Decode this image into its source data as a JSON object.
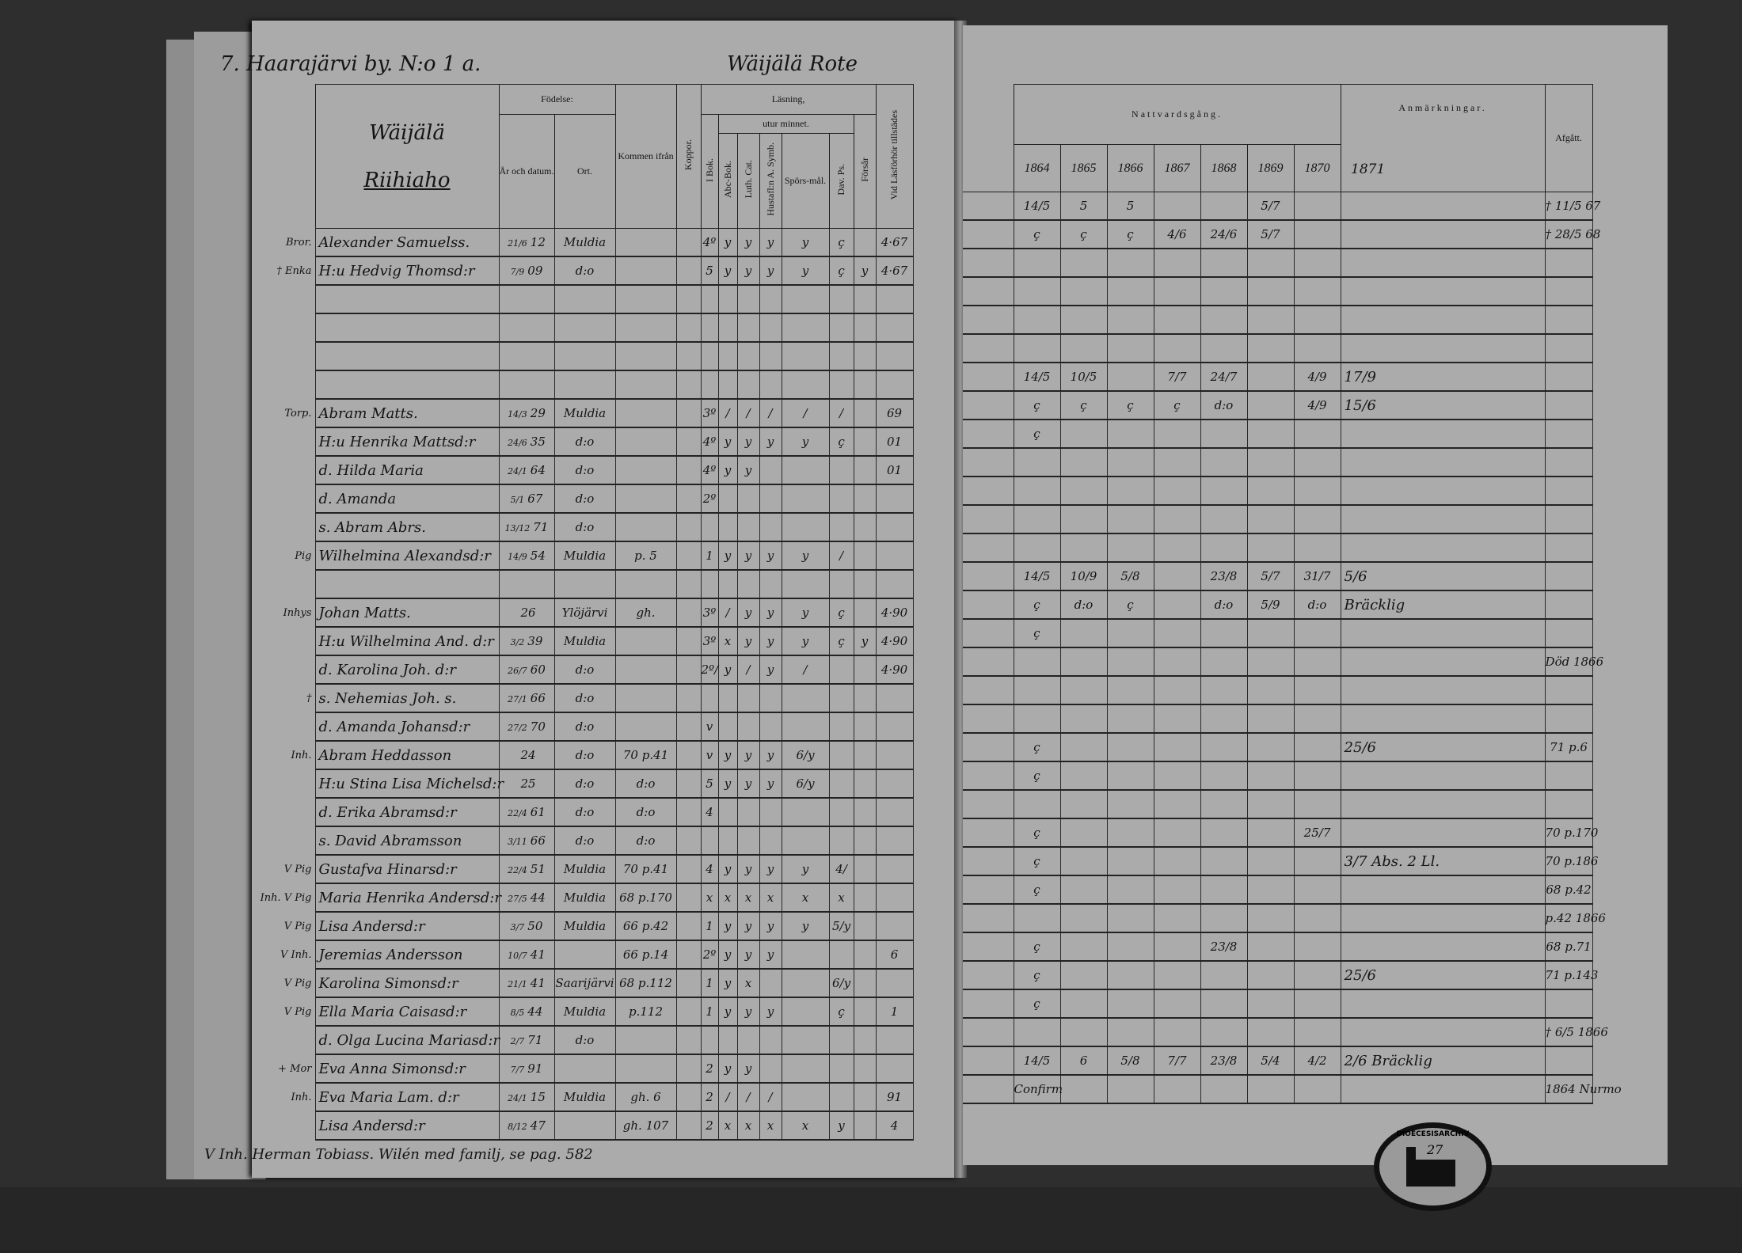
{
  "document": {
    "left_title": "7. Haarajärvi by. N:o 1 a.",
    "rote": "Wäijälä Rote",
    "farm_name": "Wäijälä",
    "farm_sub": "Riihiaho",
    "footnote": "V Inh. Herman Tobiass. Wilén med familj, se pag. 582"
  },
  "left_headers": {
    "fodelse": "Födelse:",
    "ar_datum": "År och datum.",
    "ort": "Ort.",
    "kommen": "Kommen ifrån",
    "koppor": "Koppor.",
    "lasning": "Läsning,",
    "utur_minnet": "utur minnet.",
    "i_bok": "I Bok.",
    "abc": "Abc-Bok.",
    "luth": "Luth. Cat.",
    "hust": "Hustafl:n A. Symb.",
    "spors": "Spörs-mål.",
    "dav": "Dav. Ps.",
    "forsar": "Försår",
    "vid": "Vid Läsförhör tillstädes"
  },
  "right_headers": {
    "nattvard": "Nattvardsgång.",
    "years": [
      "1864",
      "1865",
      "1866",
      "1867",
      "1868",
      "1869",
      "1870",
      "1871"
    ],
    "anm": "Anmärkningar.",
    "afgatt": "Afgått."
  },
  "rows": [
    {
      "margin": "Bror.",
      "name": "Alexander Samuelss.",
      "day": "21/6",
      "year": "12",
      "ort": "Muldia",
      "kommen": "",
      "marks": [
        "",
        "4º",
        "y",
        "y",
        "y",
        "y",
        "ç",
        "",
        ""
      ],
      "vid": "4·67",
      "nv": [
        "14/5",
        "5",
        "5",
        "",
        "",
        "5/7",
        "",
        ""
      ],
      "anm": "",
      "af": "† 11/5 67"
    },
    {
      "margin": "† Enka",
      "name": "H:u Hedvig Thomsd:r",
      "day": "7/9",
      "year": "09",
      "ort": "d:o",
      "kommen": "",
      "marks": [
        "",
        "5",
        "y",
        "y",
        "y",
        "y",
        "ç",
        "y",
        ""
      ],
      "vid": "4·67",
      "nv": [
        "ç",
        "ç",
        "ç",
        "4/6",
        "24/6",
        "5/7",
        "",
        ""
      ],
      "anm": "",
      "af": "† 28/5 68"
    },
    {
      "margin": "",
      "name": "",
      "day": "",
      "year": "",
      "ort": "",
      "kommen": "",
      "marks": [
        "",
        "",
        "",
        "",
        "",
        "",
        "",
        "",
        ""
      ],
      "vid": "",
      "nv": [
        "",
        "",
        "",
        "",
        "",
        "",
        "",
        ""
      ],
      "anm": "",
      "af": ""
    },
    {
      "margin": "",
      "name": "",
      "day": "",
      "year": "",
      "ort": "",
      "kommen": "",
      "marks": [
        "",
        "",
        "",
        "",
        "",
        "",
        "",
        "",
        ""
      ],
      "vid": "",
      "nv": [
        "",
        "",
        "",
        "",
        "",
        "",
        "",
        ""
      ],
      "anm": "",
      "af": ""
    },
    {
      "margin": "",
      "name": "",
      "day": "",
      "year": "",
      "ort": "",
      "kommen": "",
      "marks": [
        "",
        "",
        "",
        "",
        "",
        "",
        "",
        "",
        ""
      ],
      "vid": "",
      "nv": [
        "",
        "",
        "",
        "",
        "",
        "",
        "",
        ""
      ],
      "anm": "",
      "af": ""
    },
    {
      "margin": "",
      "name": "",
      "day": "",
      "year": "",
      "ort": "",
      "kommen": "",
      "marks": [
        "",
        "",
        "",
        "",
        "",
        "",
        "",
        "",
        ""
      ],
      "vid": "",
      "nv": [
        "",
        "",
        "",
        "",
        "",
        "",
        "",
        ""
      ],
      "anm": "",
      "af": ""
    },
    {
      "margin": "Torp.",
      "name": "Abram Matts.",
      "day": "14/3",
      "year": "29",
      "ort": "Muldia",
      "kommen": "",
      "marks": [
        "",
        "3º",
        "/",
        "/",
        "/",
        "/",
        "/",
        "",
        ""
      ],
      "vid": "69",
      "nv": [
        "14/5",
        "10/5",
        "",
        "7/7",
        "24/7",
        "",
        "4/9",
        "17/9"
      ],
      "anm": "",
      "af": ""
    },
    {
      "margin": "",
      "name": "H:u Henrika Mattsd:r",
      "day": "24/6",
      "year": "35",
      "ort": "d:o",
      "kommen": "",
      "marks": [
        "",
        "4º",
        "y",
        "y",
        "y",
        "y",
        "ç",
        "",
        ""
      ],
      "vid": "01",
      "nv": [
        "ç",
        "ç",
        "ç",
        "ç",
        "d:o",
        "",
        "4/9",
        "15/6"
      ],
      "anm": "",
      "af": ""
    },
    {
      "margin": "",
      "name": "d. Hilda Maria",
      "day": "24/1",
      "year": "64",
      "ort": "d:o",
      "kommen": "",
      "marks": [
        "",
        "4º",
        "y",
        "y",
        "",
        "",
        "",
        "",
        ""
      ],
      "vid": "01",
      "nv": [
        "ç",
        "",
        "",
        "",
        "",
        "",
        "",
        ""
      ],
      "anm": "",
      "af": ""
    },
    {
      "margin": "",
      "name": "d. Amanda",
      "day": "5/1",
      "year": "67",
      "ort": "d:o",
      "kommen": "",
      "marks": [
        "",
        "2º",
        "",
        "",
        "",
        "",
        "",
        "",
        ""
      ],
      "vid": "",
      "nv": [
        "",
        "",
        "",
        "",
        "",
        "",
        "",
        ""
      ],
      "anm": "",
      "af": ""
    },
    {
      "margin": "",
      "name": "s. Abram Abrs.",
      "day": "13/12",
      "year": "71",
      "ort": "d:o",
      "kommen": "",
      "marks": [
        "",
        "",
        "",
        "",
        "",
        "",
        "",
        "",
        ""
      ],
      "vid": "",
      "nv": [
        "",
        "",
        "",
        "",
        "",
        "",
        "",
        ""
      ],
      "anm": "",
      "af": ""
    },
    {
      "margin": "Pig",
      "name": "Wilhelmina Alexandsd:r",
      "day": "14/9",
      "year": "54",
      "ort": "Muldia",
      "kommen": "p. 5",
      "marks": [
        "",
        "1",
        "y",
        "y",
        "y",
        "y",
        "/",
        "",
        ""
      ],
      "vid": "",
      "nv": [
        "",
        "",
        "",
        "",
        "",
        "",
        "",
        ""
      ],
      "anm": "",
      "af": ""
    },
    {
      "margin": "",
      "name": "",
      "day": "",
      "year": "",
      "ort": "",
      "kommen": "",
      "marks": [
        "",
        "",
        "",
        "",
        "",
        "",
        "",
        "",
        ""
      ],
      "vid": "",
      "nv": [
        "",
        "",
        "",
        "",
        "",
        "",
        "",
        ""
      ],
      "anm": "",
      "af": ""
    },
    {
      "margin": "Inhys",
      "name": "Johan Matts.",
      "day": "",
      "year": "26",
      "ort": "Ylöjärvi",
      "kommen": "gh.",
      "marks": [
        "",
        "3º",
        "/",
        "y",
        "y",
        "y",
        "ç",
        "",
        ""
      ],
      "vid": "4·90",
      "nv": [
        "14/5",
        "10/9",
        "5/8",
        "",
        "23/8",
        "5/7",
        "31/7",
        "5/6"
      ],
      "anm": "",
      "af": ""
    },
    {
      "margin": "",
      "name": "H:u Wilhelmina And. d:r",
      "day": "3/2",
      "year": "39",
      "ort": "Muldia",
      "kommen": "",
      "marks": [
        "",
        "3º",
        "x",
        "y",
        "y",
        "y",
        "ç",
        "y",
        ""
      ],
      "vid": "4·90",
      "nv": [
        "ç",
        "d:o",
        "ç",
        "",
        "d:o",
        "5/9",
        "d:o",
        ""
      ],
      "anm": "Bräcklig",
      "af": ""
    },
    {
      "margin": "",
      "name": "d. Karolina Joh. d:r",
      "day": "26/7",
      "year": "60",
      "ort": "d:o",
      "kommen": "",
      "marks": [
        "",
        "2º/",
        "y",
        "/",
        "y",
        "/",
        "",
        "",
        ""
      ],
      "vid": "4·90",
      "nv": [
        "ç",
        "",
        "",
        "",
        "",
        "",
        "",
        ""
      ],
      "anm": "",
      "af": ""
    },
    {
      "margin": "†",
      "name": "s. Nehemias Joh. s.",
      "day": "27/1",
      "year": "66",
      "ort": "d:o",
      "kommen": "",
      "marks": [
        "",
        "",
        "",
        "",
        "",
        "",
        "",
        "",
        ""
      ],
      "vid": "",
      "nv": [
        "",
        "",
        "",
        "",
        "",
        "",
        "",
        ""
      ],
      "anm": "",
      "af": "Död 1866"
    },
    {
      "margin": "",
      "name": "d. Amanda Johansd:r",
      "day": "27/2",
      "year": "70",
      "ort": "d:o",
      "kommen": "",
      "marks": [
        "",
        "v",
        "",
        "",
        "",
        "",
        "",
        "",
        ""
      ],
      "vid": "",
      "nv": [
        "",
        "",
        "",
        "",
        "",
        "",
        "",
        ""
      ],
      "anm": "",
      "af": ""
    },
    {
      "margin": "Inh.",
      "name": "Abram Heddasson",
      "day": "",
      "year": "24",
      "ort": "d:o",
      "kommen": "70 p.41",
      "marks": [
        "",
        "v",
        "y",
        "y",
        "y",
        "6/y",
        "",
        "",
        ""
      ],
      "vid": "",
      "nv": [
        "",
        "",
        "",
        "",
        "",
        "",
        "",
        ""
      ],
      "anm": "",
      "af": ""
    },
    {
      "margin": "",
      "name": "H:u Stina Lisa Michelsd:r",
      "day": "",
      "year": "25",
      "ort": "d:o",
      "kommen": "d:o",
      "marks": [
        "",
        "5",
        "y",
        "y",
        "y",
        "6/y",
        "",
        "",
        ""
      ],
      "vid": "",
      "nv": [
        "ç",
        "",
        "",
        "",
        "",
        "",
        "",
        "25/6"
      ],
      "anm": "",
      "af": "71 p.6"
    },
    {
      "margin": "",
      "name": "d. Erika Abramsd:r",
      "day": "22/4",
      "year": "61",
      "ort": "d:o",
      "kommen": "d:o",
      "marks": [
        "",
        "4",
        "",
        "",
        "",
        "",
        "",
        "",
        ""
      ],
      "vid": "",
      "nv": [
        "ç",
        "",
        "",
        "",
        "",
        "",
        "",
        ""
      ],
      "anm": "",
      "af": ""
    },
    {
      "margin": "",
      "name": "s. David Abramsson",
      "day": "3/11",
      "year": "66",
      "ort": "d:o",
      "kommen": "d:o",
      "marks": [
        "",
        "",
        "",
        "",
        "",
        "",
        "",
        "",
        ""
      ],
      "vid": "",
      "nv": [
        "",
        "",
        "",
        "",
        "",
        "",
        "",
        ""
      ],
      "anm": "",
      "af": ""
    },
    {
      "margin": "V Pig",
      "name": "Gustafva Hinarsd:r",
      "day": "22/4",
      "year": "51",
      "ort": "Muldia",
      "kommen": "70 p.41",
      "marks": [
        "",
        "4",
        "y",
        "y",
        "y",
        "y",
        "4/",
        "",
        ""
      ],
      "vid": "",
      "nv": [
        "ç",
        "",
        "",
        "",
        "",
        "",
        "25/7",
        ""
      ],
      "anm": "",
      "af": "70 p.170"
    },
    {
      "margin": "Inh. V Pig",
      "name": "Maria Henrika Andersd:r",
      "day": "27/5",
      "year": "44",
      "ort": "Muldia",
      "kommen": "68 p.170",
      "marks": [
        "",
        "x",
        "x",
        "x",
        "x",
        "x",
        "x",
        "",
        ""
      ],
      "vid": "",
      "nv": [
        "ç",
        "",
        "",
        "",
        "",
        "",
        "",
        "3/7"
      ],
      "anm": "Abs. 2 Ll.",
      "af": "70 p.186"
    },
    {
      "margin": "V Pig",
      "name": "Lisa Andersd:r",
      "day": "3/7",
      "year": "50",
      "ort": "Muldia",
      "kommen": "66 p.42",
      "marks": [
        "",
        "1",
        "y",
        "y",
        "y",
        "y",
        "5/y",
        "",
        ""
      ],
      "vid": "",
      "nv": [
        "ç",
        "",
        "",
        "",
        "",
        "",
        "",
        ""
      ],
      "anm": "",
      "af": "68 p.42"
    },
    {
      "margin": "V Inh.",
      "name": "Jeremias Andersson",
      "day": "10/7",
      "year": "41",
      "ort": "",
      "kommen": "66 p.14",
      "marks": [
        "",
        "2º",
        "y",
        "y",
        "y",
        "",
        "",
        "",
        ""
      ],
      "vid": "6",
      "nv": [
        "",
        "",
        "",
        "",
        "",
        "",
        "",
        ""
      ],
      "anm": "",
      "af": "p.42 1866"
    },
    {
      "margin": "V Pig",
      "name": "Karolina Simonsd:r",
      "day": "21/1",
      "year": "41",
      "ort": "Saarijärvi",
      "kommen": "68 p.112",
      "marks": [
        "",
        "1",
        "y",
        "x",
        "",
        "",
        "6/y",
        "",
        ""
      ],
      "vid": "",
      "nv": [
        "ç",
        "",
        "",
        "",
        "23/8",
        "",
        "",
        ""
      ],
      "anm": "",
      "af": "68 p.71"
    },
    {
      "margin": "V Pig",
      "name": "Ella Maria Caisasd:r",
      "day": "8/5",
      "year": "44",
      "ort": "Muldia",
      "kommen": "p.112",
      "marks": [
        "",
        "1",
        "y",
        "y",
        "y",
        "",
        "ç",
        "",
        ""
      ],
      "vid": "1",
      "nv": [
        "ç",
        "",
        "",
        "",
        "",
        "",
        "",
        "25/6"
      ],
      "anm": "",
      "af": "71 p.143"
    },
    {
      "margin": "",
      "name": "d. Olga Lucina Mariasd:r",
      "day": "2/7",
      "year": "71",
      "ort": "d:o",
      "kommen": "",
      "marks": [
        "",
        "",
        "",
        "",
        "",
        "",
        "",
        "",
        ""
      ],
      "vid": "",
      "nv": [
        "ç",
        "",
        "",
        "",
        "",
        "",
        "",
        ""
      ],
      "anm": "",
      "af": ""
    },
    {
      "margin": "+ Mor",
      "name": "Eva Anna Simonsd:r",
      "day": "7/7",
      "year": "91",
      "ort": "",
      "kommen": "",
      "marks": [
        "",
        "2",
        "y",
        "y",
        "",
        "",
        "",
        "",
        ""
      ],
      "vid": "",
      "nv": [
        "",
        "",
        "",
        "",
        "",
        "",
        "",
        ""
      ],
      "anm": "",
      "af": "† 6/5 1866"
    },
    {
      "margin": "Inh.",
      "name": "Eva Maria Lam. d:r",
      "day": "24/1",
      "year": "15",
      "ort": "Muldia",
      "kommen": "gh. 6",
      "marks": [
        "",
        "2",
        "/",
        "/",
        "/",
        "",
        "",
        "",
        ""
      ],
      "vid": "91",
      "nv": [
        "14/5",
        "6",
        "5/8",
        "7/7",
        "23/8",
        "5/4",
        "4/2",
        "2/6"
      ],
      "anm": "Bräcklig",
      "af": ""
    },
    {
      "margin": "",
      "name": "Lisa Andersd:r",
      "day": "8/12",
      "year": "47",
      "ort": "",
      "kommen": "gh. 107",
      "marks": [
        "",
        "2",
        "x",
        "x",
        "x",
        "x",
        "y",
        "",
        ""
      ],
      "vid": "4",
      "nv": [
        "Confirm",
        "",
        "",
        "",
        "",
        "",
        "",
        ""
      ],
      "anm": "",
      "af": "1864 Nurmo"
    }
  ],
  "stamp": {
    "text": "DIOECESISARCHIV",
    "number": "27"
  },
  "colors": {
    "paper": "#ababab",
    "ink": "#141414",
    "background": "#2e2e2e"
  }
}
